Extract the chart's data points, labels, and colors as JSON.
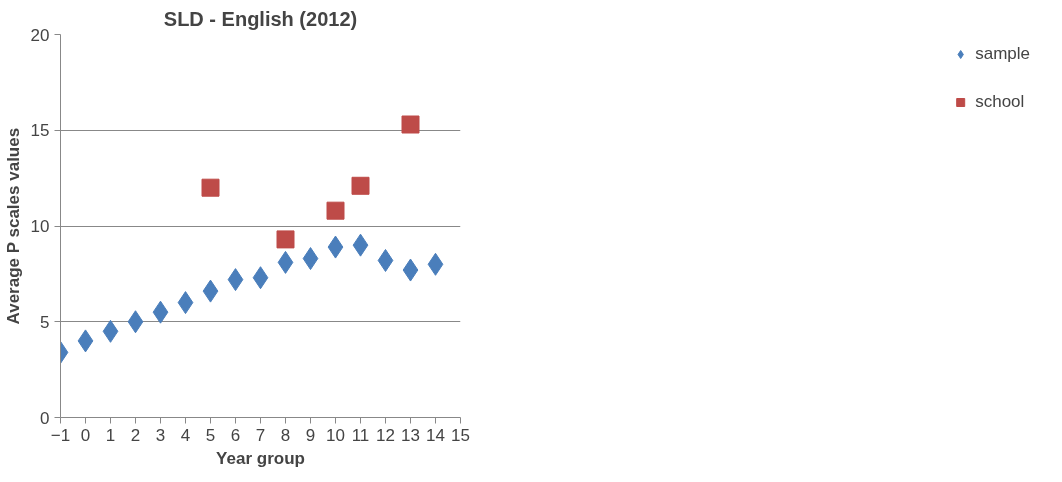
{
  "chart_data": {
    "type": "scatter",
    "title": "SLD - English (2012)",
    "xlabel": "Year group",
    "ylabel": "Average P scales values",
    "xlim": [
      -1,
      15
    ],
    "xticks": [
      -1,
      0,
      1,
      2,
      3,
      4,
      5,
      6,
      7,
      8,
      9,
      10,
      11,
      12,
      13,
      14,
      15
    ],
    "ylim": [
      0,
      20
    ],
    "yticks": [
      0,
      5,
      10,
      15,
      20
    ],
    "grid": "y",
    "legend": "right",
    "series": [
      {
        "name": "sample",
        "color": "#4a7ebb",
        "marker": "diamond",
        "x": [
          -1,
          0,
          1,
          2,
          3,
          4,
          5,
          6,
          7,
          8,
          9,
          10,
          11,
          12,
          13,
          14
        ],
        "values": [
          3.4,
          4.0,
          4.5,
          5.0,
          5.5,
          6.0,
          6.6,
          7.2,
          7.3,
          8.1,
          8.3,
          8.9,
          9.0,
          8.2,
          7.7,
          8.0
        ]
      },
      {
        "name": "school",
        "color": "#be4b48",
        "marker": "square",
        "x": [
          5,
          8,
          10,
          11,
          13
        ],
        "values": [
          12.0,
          9.3,
          10.8,
          12.1,
          15.3
        ]
      }
    ]
  }
}
